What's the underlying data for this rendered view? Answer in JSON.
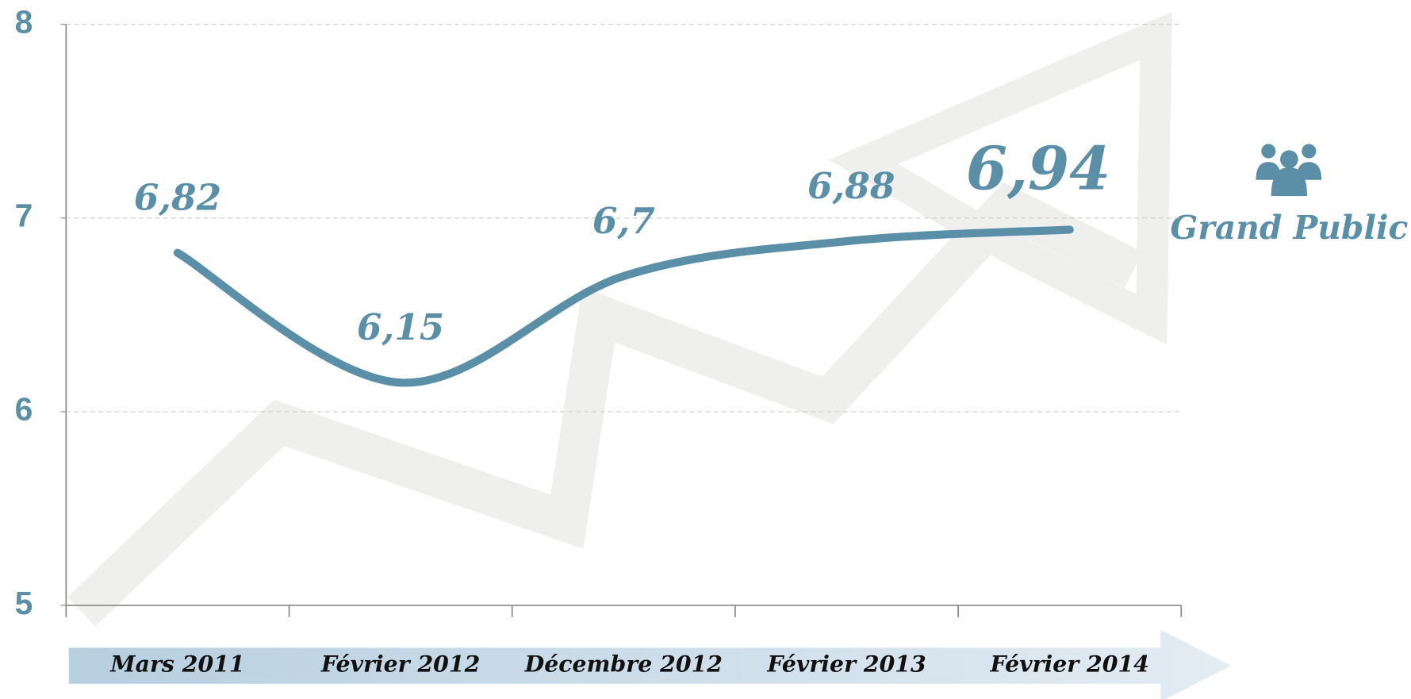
{
  "chart_data": {
    "type": "line",
    "categories": [
      "Mars 2011",
      "Février 2012",
      "Décembre 2012",
      "Février 2013",
      "Février 2014"
    ],
    "series": [
      {
        "name": "Grand Public",
        "color": "#5b8fa8",
        "values": [
          6.82,
          6.15,
          6.7,
          6.88,
          6.94
        ],
        "value_labels": [
          "6,82",
          "6,15",
          "6,7",
          "6,88",
          "6,94"
        ]
      }
    ],
    "ylim": [
      5,
      8
    ],
    "yticks": [
      5,
      6,
      7,
      8
    ],
    "grid": true
  }
}
